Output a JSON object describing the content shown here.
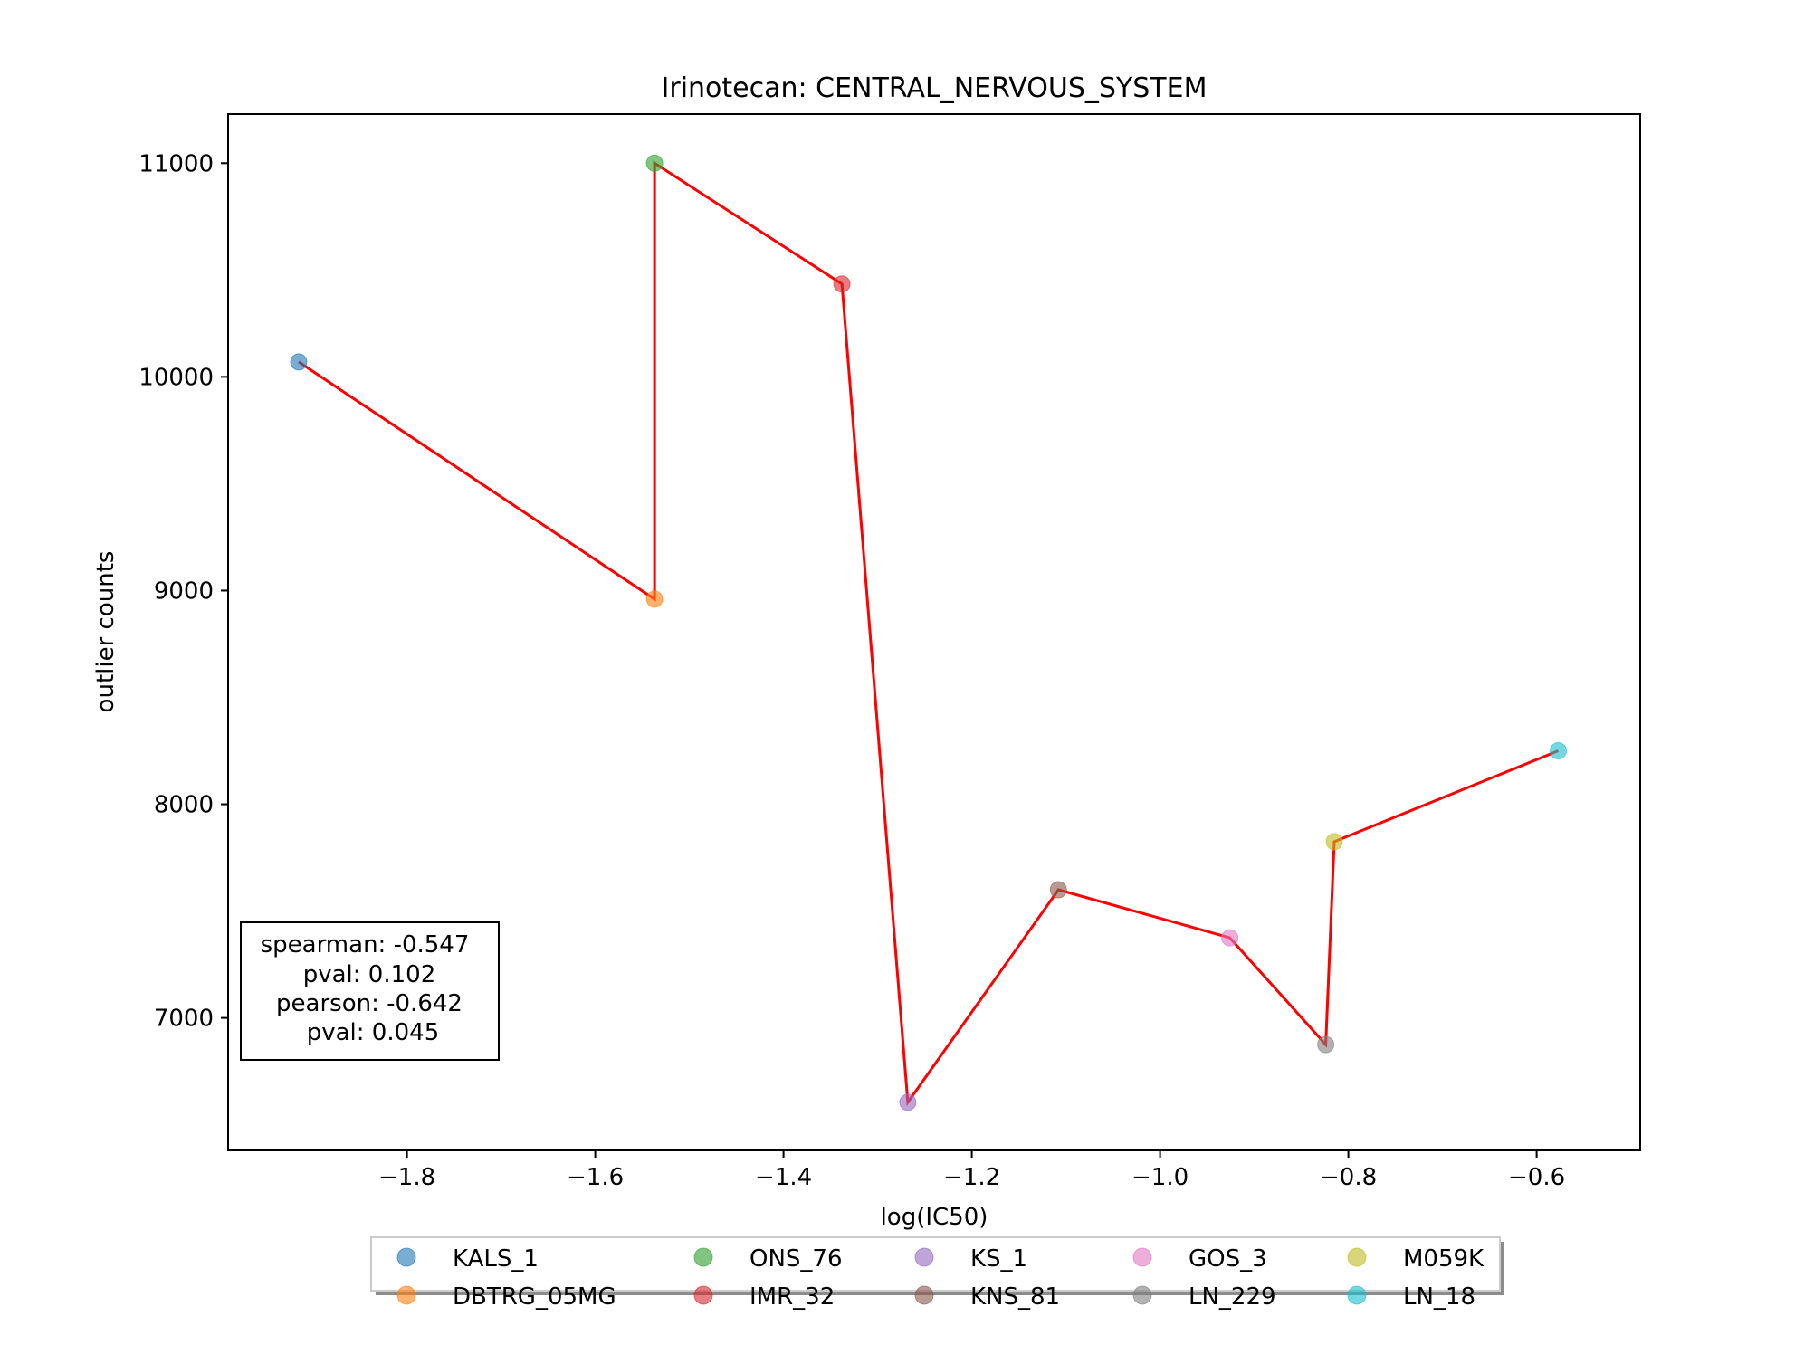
{
  "chart_data": {
    "type": "scatter",
    "title": "Irinotecan: CENTRAL_NERVOUS_SYSTEM",
    "xlabel": "log(IC50)",
    "ylabel": "outlier counts",
    "xlim": [
      -1.99,
      -0.49
    ],
    "ylim": [
      6380,
      11230
    ],
    "xticks": [
      -1.8,
      -1.6,
      -1.4,
      -1.2,
      -1.0,
      -0.8,
      -0.6
    ],
    "xtick_labels": [
      "−1.8",
      "−1.6",
      "−1.4",
      "−1.2",
      "−1.0",
      "−0.8",
      "−0.6"
    ],
    "yticks": [
      7000,
      8000,
      9000,
      10000,
      11000
    ],
    "ytick_labels": [
      "7000",
      "8000",
      "9000",
      "10000",
      "11000"
    ],
    "grid": false,
    "points": [
      {
        "name": "KALS_1",
        "x": -1.915,
        "y": 10070,
        "color": "#1f77b4"
      },
      {
        "name": "DBTRG_05MG",
        "x": -1.537,
        "y": 8960,
        "color": "#ff7f0e"
      },
      {
        "name": "ONS_76",
        "x": -1.537,
        "y": 11000,
        "color": "#2ca02c"
      },
      {
        "name": "IMR_32",
        "x": -1.338,
        "y": 10435,
        "color": "#d62728"
      },
      {
        "name": "KS_1",
        "x": -1.268,
        "y": 6605,
        "color": "#9467bd"
      },
      {
        "name": "KNS_81",
        "x": -1.108,
        "y": 7600,
        "color": "#8c564b"
      },
      {
        "name": "GOS_3",
        "x": -0.926,
        "y": 7375,
        "color": "#e377c2"
      },
      {
        "name": "LN_229",
        "x": -0.824,
        "y": 6875,
        "color": "#7f7f7f"
      },
      {
        "name": "M059K",
        "x": -0.815,
        "y": 7825,
        "color": "#bcbd22"
      },
      {
        "name": "LN_18",
        "x": -0.577,
        "y": 8250,
        "color": "#17becf"
      }
    ],
    "line": {
      "color": "#ff0000",
      "order": [
        "KALS_1",
        "DBTRG_05MG",
        "ONS_76",
        "IMR_32",
        "KS_1",
        "KNS_81",
        "GOS_3",
        "LN_229",
        "M059K",
        "LN_18"
      ]
    },
    "stats_box": {
      "lines": [
        "spearman: -0.547",
        "pval: 0.102",
        "pearson: -0.642",
        "pval: 0.045"
      ]
    },
    "legend": {
      "placement": "bottom-center",
      "ncol": 5,
      "entries": [
        "KALS_1",
        "DBTRG_05MG",
        "ONS_76",
        "IMR_32",
        "KS_1",
        "KNS_81",
        "GOS_3",
        "LN_229",
        "M059K",
        "LN_18"
      ]
    }
  }
}
